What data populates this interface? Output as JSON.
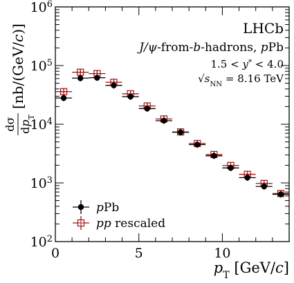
{
  "chart_data": {
    "type": "scatter",
    "yscale": "log",
    "xlim": [
      0,
      14
    ],
    "ylim": [
      100,
      1000000
    ],
    "x_ticks": [
      0,
      5,
      10
    ],
    "y_ticks": [
      100,
      1000,
      10000,
      100000,
      1000000
    ],
    "grid": false,
    "legend_position": "bottom-left",
    "xlabel": "pT [GeV/c]",
    "ylabel": "dσ/dpT [nb/(GeV/c)]",
    "annotations": [
      "LHCb",
      "J/ψ-from-b-hadrons, pPb",
      "1.5 < y* < 4.0",
      "√sNN = 8.16 TeV"
    ],
    "bin_edges": [
      0,
      1,
      2,
      3,
      4,
      5,
      6,
      7,
      8,
      9,
      10,
      11,
      12,
      13,
      14
    ],
    "series": [
      {
        "name": "pPb",
        "x": [
          0.5,
          1.5,
          2.5,
          3.5,
          4.5,
          5.5,
          6.5,
          7.5,
          8.5,
          9.5,
          10.5,
          11.5,
          12.5,
          13.5
        ],
        "y": [
          28000,
          61000,
          62000,
          46000,
          29500,
          18500,
          11500,
          7300,
          4500,
          2900,
          1800,
          1230,
          870,
          640
        ],
        "color": "#000000",
        "marker": "filled-circle"
      },
      {
        "name": "pp rescaled",
        "x": [
          0.5,
          1.5,
          2.5,
          3.5,
          4.5,
          5.5,
          6.5,
          7.5,
          8.5,
          9.5,
          10.5,
          11.5,
          12.5,
          13.5
        ],
        "y": [
          36000,
          77000,
          73000,
          52000,
          33000,
          20500,
          12300,
          7400,
          4700,
          3050,
          1980,
          1400,
          980,
          660
        ],
        "color": "#a01010",
        "marker": "open-square-cross"
      }
    ]
  }
}
